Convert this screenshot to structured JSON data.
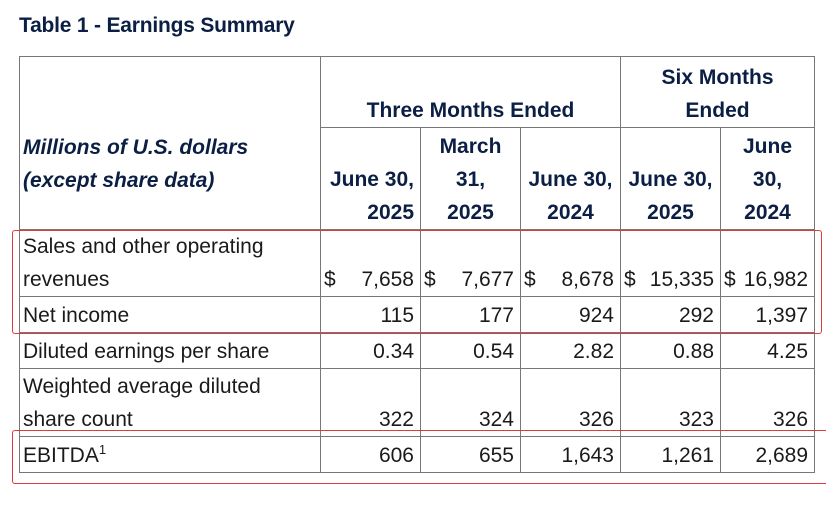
{
  "title": "Table 1 - Earnings Summary",
  "header": {
    "units_line1": "Millions of U.S. dollars",
    "units_line2": "(except share data)",
    "group_three_months": "Three Months Ended",
    "group_six_months_line1": "Six Months",
    "group_six_months_line2": "Ended",
    "columns": [
      {
        "line1": "",
        "line2": "June 30,",
        "line3": "2025"
      },
      {
        "line1": "March",
        "line2": "31,",
        "line3": "2025"
      },
      {
        "line1": "",
        "line2": "June 30,",
        "line3": "2024"
      },
      {
        "line1": "",
        "line2": "June 30,",
        "line3": "2025"
      },
      {
        "line1": "June",
        "line2": "30,",
        "line3": "2024"
      }
    ]
  },
  "rows": [
    {
      "label_line1": "Sales and other operating",
      "label_line2": "revenues",
      "currency": "$",
      "values": [
        "7,658",
        "7,677",
        "8,678",
        "15,335",
        "16,982"
      ]
    },
    {
      "label": "Net income",
      "values": [
        "115",
        "177",
        "924",
        "292",
        "1,397"
      ]
    },
    {
      "label": "Diluted earnings per share",
      "values": [
        "0.34",
        "0.54",
        "2.82",
        "0.88",
        "4.25"
      ]
    },
    {
      "label_line1": "Weighted average diluted",
      "label_line2": "share count",
      "values": [
        "322",
        "324",
        "326",
        "323",
        "326"
      ]
    },
    {
      "label": "EBITDA",
      "footnote": "1",
      "values": [
        "606",
        "655",
        "1,643",
        "1,261",
        "2,689"
      ]
    }
  ],
  "highlight_color": "#e03a3a"
}
